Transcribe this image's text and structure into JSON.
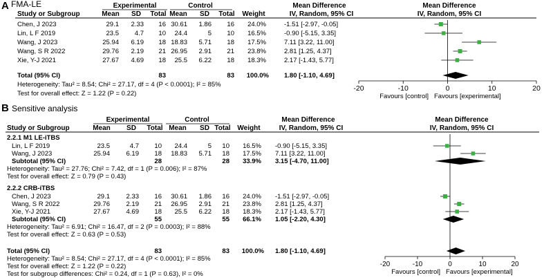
{
  "chart_data": [
    {
      "type": "forest",
      "panel_label": "A",
      "title": "FMA-LE",
      "headers": {
        "study": "Study or Subgroup",
        "group1": "Experimental",
        "group2": "Control",
        "mean": "Mean",
        "sd": "SD",
        "total": "Total",
        "weight": "Weight",
        "md": "Mean Difference",
        "md_sub": "IV, Random, 95% CI"
      },
      "studies": [
        {
          "name": "Chen, J  2023",
          "e_mean": "29.1",
          "e_sd": "2.33",
          "e_n": "16",
          "c_mean": "30.61",
          "c_sd": "1.86",
          "c_n": "16",
          "weight": "24.0%",
          "ci_text": "-1.51 [-2.97, -0.05]",
          "md": -1.51,
          "lo": -2.97,
          "hi": -0.05,
          "w": 24.0
        },
        {
          "name": "Lin, L F 2019",
          "e_mean": "23.5",
          "e_sd": "4.7",
          "e_n": "10",
          "c_mean": "24.4",
          "c_sd": "5",
          "c_n": "10",
          "weight": "16.5%",
          "ci_text": "-0.90 [-5.15, 3.35]",
          "md": -0.9,
          "lo": -5.15,
          "hi": 3.35,
          "w": 16.5
        },
        {
          "name": "Wang, J 2023",
          "e_mean": "25.94",
          "e_sd": "6.19",
          "e_n": "18",
          "c_mean": "18.83",
          "c_sd": "5.71",
          "c_n": "18",
          "weight": "17.5%",
          "ci_text": "7.11 [3.22, 11.00]",
          "md": 7.11,
          "lo": 3.22,
          "hi": 11.0,
          "w": 17.5
        },
        {
          "name": "Wang, S R 2022",
          "e_mean": "29.76",
          "e_sd": "2.19",
          "e_n": "21",
          "c_mean": "26.95",
          "c_sd": "2.91",
          "c_n": "21",
          "weight": "23.8%",
          "ci_text": "2.81 [1.25, 4.37]",
          "md": 2.81,
          "lo": 1.25,
          "hi": 4.37,
          "w": 23.8
        },
        {
          "name": "Xie, Y-J 2021",
          "e_mean": "27.67",
          "e_sd": "4.69",
          "e_n": "18",
          "c_mean": "25.5",
          "c_sd": "6.22",
          "c_n": "18",
          "weight": "18.3%",
          "ci_text": "2.17 [-1.43, 5.77]",
          "md": 2.17,
          "lo": -1.43,
          "hi": 5.77,
          "w": 18.3
        }
      ],
      "total": {
        "label": "Total (95% CI)",
        "e_n": "83",
        "c_n": "83",
        "weight": "100.0%",
        "ci_text": "1.80 [-1.10, 4.69]",
        "md": 1.8,
        "lo": -1.1,
        "hi": 4.69
      },
      "heterogeneity": "Heterogeneity: Tau² = 8.54; Chi² = 27.17, df = 4 (P < 0.0001); I² = 85%",
      "overall_effect": "Test for overall effect: Z = 1.22 (P = 0.22)",
      "axis": {
        "min": -20,
        "max": 20,
        "ticks": [
          -20,
          -10,
          0,
          10,
          20
        ],
        "tick_labels": [
          "-20",
          "-10",
          "0",
          "10",
          "20"
        ]
      },
      "favours_left": "Favours [control]",
      "favours_right": "Favours [experimental]"
    },
    {
      "type": "forest",
      "panel_label": "B",
      "title": "Sensitive analysis",
      "headers": {
        "study": "Study or Subgroup",
        "group1": "Experimental",
        "group2": "Control",
        "mean": "Mean",
        "sd": "SD",
        "total": "Total",
        "weight": "Weight",
        "md": "Mean Difference",
        "md_sub": "IV, Random, 95% CI"
      },
      "subgroups": [
        {
          "label": "2.2.1 M1 LE-iTBS",
          "studies": [
            {
              "name": "Lin, L F 2019",
              "e_mean": "23.5",
              "e_sd": "4.7",
              "e_n": "10",
              "c_mean": "24.4",
              "c_sd": "5",
              "c_n": "10",
              "weight": "16.5%",
              "ci_text": "-0.90 [-5.15, 3.35]",
              "md": -0.9,
              "lo": -5.15,
              "hi": 3.35,
              "w": 16.5
            },
            {
              "name": "Wang, J 2023",
              "e_mean": "25.94",
              "e_sd": "6.19",
              "e_n": "18",
              "c_mean": "18.83",
              "c_sd": "5.71",
              "c_n": "18",
              "weight": "17.5%",
              "ci_text": "7.11 [3.22, 11.00]",
              "md": 7.11,
              "lo": 3.22,
              "hi": 11.0,
              "w": 17.5
            }
          ],
          "subtotal": {
            "label": "Subtotal (95% CI)",
            "e_n": "28",
            "c_n": "28",
            "weight": "33.9%",
            "ci_text": "3.15 [-4.70, 11.00]",
            "md": 3.15,
            "lo": -4.7,
            "hi": 11.0
          },
          "heterogeneity": "Heterogeneity: Tau² = 27.76; Chi² = 7.42, df = 1 (P = 0.006); I² = 87%",
          "overall_effect": "Test for overall effect: Z = 0.79 (P = 0.43)"
        },
        {
          "label": "2.2.2 CRB-iTBS",
          "studies": [
            {
              "name": "Chen, J  2023",
              "e_mean": "29.1",
              "e_sd": "2.33",
              "e_n": "16",
              "c_mean": "30.61",
              "c_sd": "1.86",
              "c_n": "16",
              "weight": "24.0%",
              "ci_text": "-1.51 [-2.97, -0.05]",
              "md": -1.51,
              "lo": -2.97,
              "hi": -0.05,
              "w": 24.0
            },
            {
              "name": "Wang, S R 2022",
              "e_mean": "29.76",
              "e_sd": "2.19",
              "e_n": "21",
              "c_mean": "26.95",
              "c_sd": "2.91",
              "c_n": "21",
              "weight": "23.8%",
              "ci_text": "2.81 [1.25, 4.37]",
              "md": 2.81,
              "lo": 1.25,
              "hi": 4.37,
              "w": 23.8
            },
            {
              "name": "Xie, Y-J 2021",
              "e_mean": "27.67",
              "e_sd": "4.69",
              "e_n": "18",
              "c_mean": "25.5",
              "c_sd": "6.22",
              "c_n": "18",
              "weight": "18.3%",
              "ci_text": "2.17 [-1.43, 5.77]",
              "md": 2.17,
              "lo": -1.43,
              "hi": 5.77,
              "w": 18.3
            }
          ],
          "subtotal": {
            "label": "Subtotal (95% CI)",
            "e_n": "55",
            "c_n": "55",
            "weight": "66.1%",
            "ci_text": "1.05 [-2.20, 4.30]",
            "md": 1.05,
            "lo": -2.2,
            "hi": 4.3
          },
          "heterogeneity": "Heterogeneity: Tau² = 6.91; Chi² = 16.47, df = 2 (P = 0.0003); I² = 88%",
          "overall_effect": "Test for overall effect: Z = 0.63 (P = 0.53)"
        }
      ],
      "total": {
        "label": "Total (95% CI)",
        "e_n": "83",
        "c_n": "83",
        "weight": "100.0%",
        "ci_text": "1.80 [-1.10, 4.69]",
        "md": 1.8,
        "lo": -1.1,
        "hi": 4.69
      },
      "heterogeneity": "Heterogeneity: Tau² = 8.54; Chi² = 27.17, df = 4 (P < 0.0001); I² = 85%",
      "overall_effect": "Test for overall effect: Z = 1.22 (P = 0.22)",
      "subgroup_diff": "Test for subgroup differences: Chi² = 0.24, df = 1 (P = 0.63), I² = 0%",
      "axis": {
        "min": -20,
        "max": 20,
        "ticks": [
          -20,
          -10,
          0,
          10,
          20
        ],
        "tick_labels": [
          "-20",
          "-10",
          "0",
          "10",
          "20"
        ]
      },
      "favours_left": "Favours [control]",
      "favours_right": "Favours [experimental]"
    }
  ],
  "colors": {
    "marker": "#3cb043",
    "line": "#000000",
    "diamond": "#000000"
  }
}
